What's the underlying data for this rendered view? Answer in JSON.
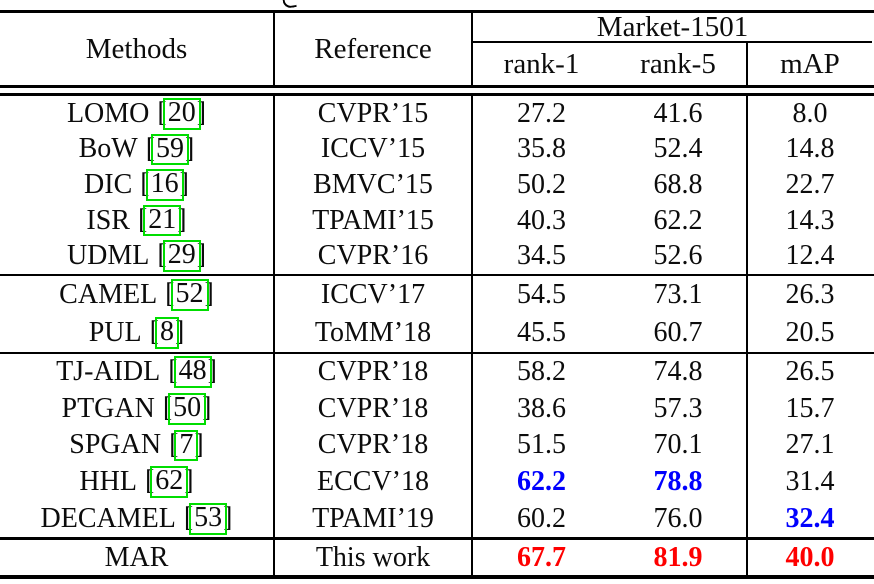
{
  "colors": {
    "best_value": "#fe0000",
    "second_best_value": "#0000fe",
    "citation_box": "#00dd00",
    "rule": "#000000"
  },
  "table": {
    "header": {
      "methods": "Methods",
      "reference": "Reference",
      "dataset": "Market-1501",
      "subcolumns": [
        "rank-1",
        "rank-5",
        "mAP"
      ]
    },
    "groups": [
      {
        "rows": [
          {
            "method": "LOMO",
            "cite": "20",
            "reference": "CVPR’15",
            "values": [
              {
                "t": "27.2"
              },
              {
                "t": "41.6"
              },
              {
                "t": "8.0"
              }
            ]
          },
          {
            "method": "BoW",
            "cite": "59",
            "reference": "ICCV’15",
            "values": [
              {
                "t": "35.8"
              },
              {
                "t": "52.4"
              },
              {
                "t": "14.8"
              }
            ]
          },
          {
            "method": "DIC",
            "cite": "16",
            "reference": "BMVC’15",
            "values": [
              {
                "t": "50.2"
              },
              {
                "t": "68.8"
              },
              {
                "t": "22.7"
              }
            ]
          },
          {
            "method": "ISR",
            "cite": "21",
            "reference": "TPAMI’15",
            "values": [
              {
                "t": "40.3"
              },
              {
                "t": "62.2"
              },
              {
                "t": "14.3"
              }
            ]
          },
          {
            "method": "UDML",
            "cite": "29",
            "reference": "CVPR’16",
            "values": [
              {
                "t": "34.5"
              },
              {
                "t": "52.6"
              },
              {
                "t": "12.4"
              }
            ]
          }
        ]
      },
      {
        "rows": [
          {
            "method": "CAMEL",
            "cite": "52",
            "reference": "ICCV’17",
            "values": [
              {
                "t": "54.5"
              },
              {
                "t": "73.1"
              },
              {
                "t": "26.3"
              }
            ]
          },
          {
            "method": "PUL",
            "cite": "8",
            "reference": "ToMM’18",
            "values": [
              {
                "t": "45.5"
              },
              {
                "t": "60.7"
              },
              {
                "t": "20.5"
              }
            ]
          }
        ]
      },
      {
        "rows": [
          {
            "method": "TJ-AIDL",
            "cite": "48",
            "reference": "CVPR’18",
            "values": [
              {
                "t": "58.2"
              },
              {
                "t": "74.8"
              },
              {
                "t": "26.5"
              }
            ]
          },
          {
            "method": "PTGAN",
            "cite": "50",
            "reference": "CVPR’18",
            "values": [
              {
                "t": "38.6"
              },
              {
                "t": "57.3"
              },
              {
                "t": "15.7"
              }
            ]
          },
          {
            "method": "SPGAN",
            "cite": "7",
            "reference": "CVPR’18",
            "values": [
              {
                "t": "51.5"
              },
              {
                "t": "70.1"
              },
              {
                "t": "27.1"
              }
            ]
          },
          {
            "method": "HHL",
            "cite": "62",
            "reference": "ECCV’18",
            "values": [
              {
                "t": "62.2",
                "s": "second"
              },
              {
                "t": "78.8",
                "s": "second"
              },
              {
                "t": "31.4"
              }
            ]
          },
          {
            "method": "DECAMEL",
            "cite": "53",
            "reference": "TPAMI’19",
            "values": [
              {
                "t": "60.2"
              },
              {
                "t": "76.0"
              },
              {
                "t": "32.4",
                "s": "second"
              }
            ]
          }
        ]
      },
      {
        "rows": [
          {
            "method": "MAR",
            "cite": null,
            "reference": "This work",
            "values": [
              {
                "t": "67.7",
                "s": "best"
              },
              {
                "t": "81.9",
                "s": "best"
              },
              {
                "t": "40.0",
                "s": "best"
              }
            ]
          }
        ]
      }
    ]
  }
}
